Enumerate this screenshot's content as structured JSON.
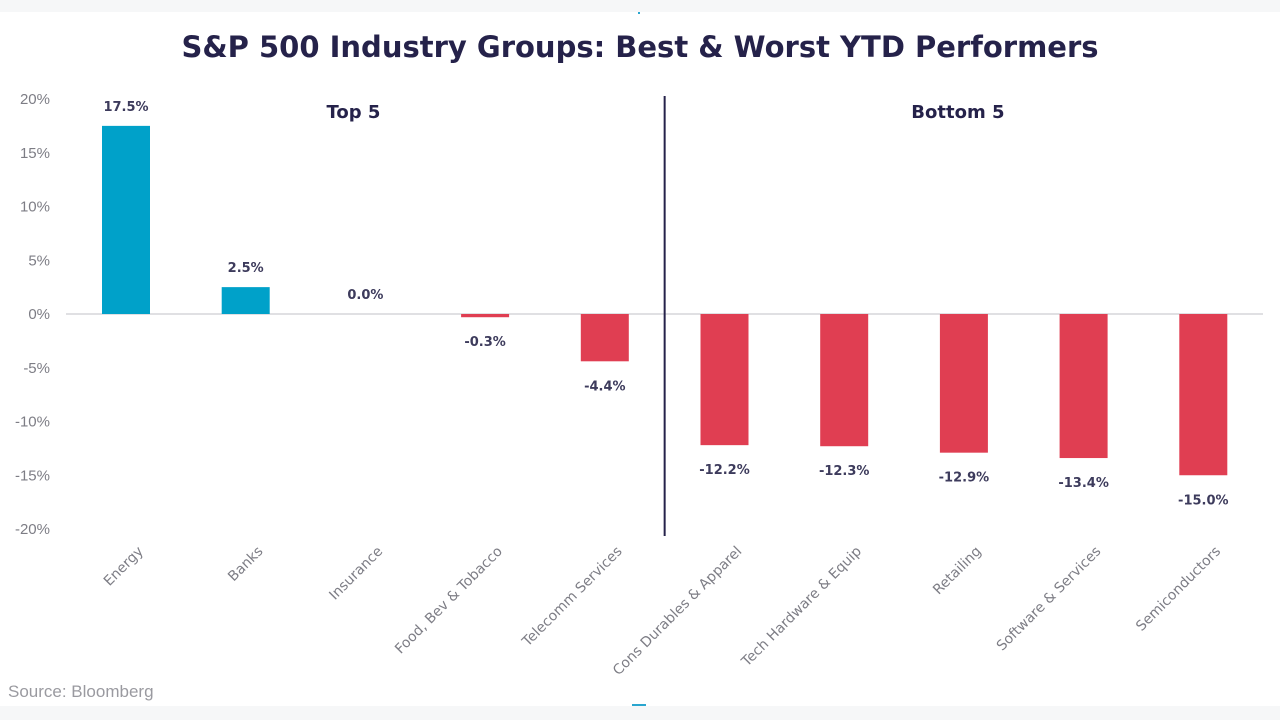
{
  "chart_data": {
    "type": "bar",
    "title": "S&P 500 Industry Groups: Best & Worst YTD Performers",
    "xlabel": "",
    "ylabel": "",
    "ylim": [
      -20,
      20
    ],
    "yticks": [
      20,
      15,
      10,
      5,
      0,
      -5,
      -10,
      -15,
      -20
    ],
    "ytick_labels": [
      "20%",
      "15%",
      "10%",
      "5%",
      "0%",
      "-5%",
      "-10%",
      "-15%",
      "-20%"
    ],
    "grid": false,
    "categories": [
      "Energy",
      "Banks",
      "Insurance",
      "Food, Bev & Tobacco",
      "Telecomm Services",
      "Cons Durables & Apparel",
      "Tech Hardware & Equip",
      "Retailing",
      "Software & Services",
      "Semiconductors"
    ],
    "values": [
      17.5,
      2.5,
      0.0,
      -0.3,
      -4.4,
      -12.2,
      -12.3,
      -12.9,
      -13.4,
      -15.0
    ],
    "data_labels": [
      "17.5%",
      "2.5%",
      "0.0%",
      "-0.3%",
      "-4.4%",
      "-12.2%",
      "-12.3%",
      "-12.9%",
      "-13.4%",
      "-15.0%"
    ],
    "groups": [
      {
        "label": "Top 5",
        "categories": [
          "Energy",
          "Banks",
          "Insurance",
          "Food, Bev & Tobacco",
          "Telecomm Services"
        ]
      },
      {
        "label": "Bottom 5",
        "categories": [
          "Cons Durables & Apparel",
          "Tech Hardware & Equip",
          "Retailing",
          "Software & Services",
          "Semiconductors"
        ]
      }
    ],
    "colors": {
      "positive": "#00a1c9",
      "negative": "#e03e52",
      "divider": "#25224a",
      "zero_line": "#d6d6da"
    },
    "legend": "none",
    "source": "Source: Bloomberg"
  }
}
